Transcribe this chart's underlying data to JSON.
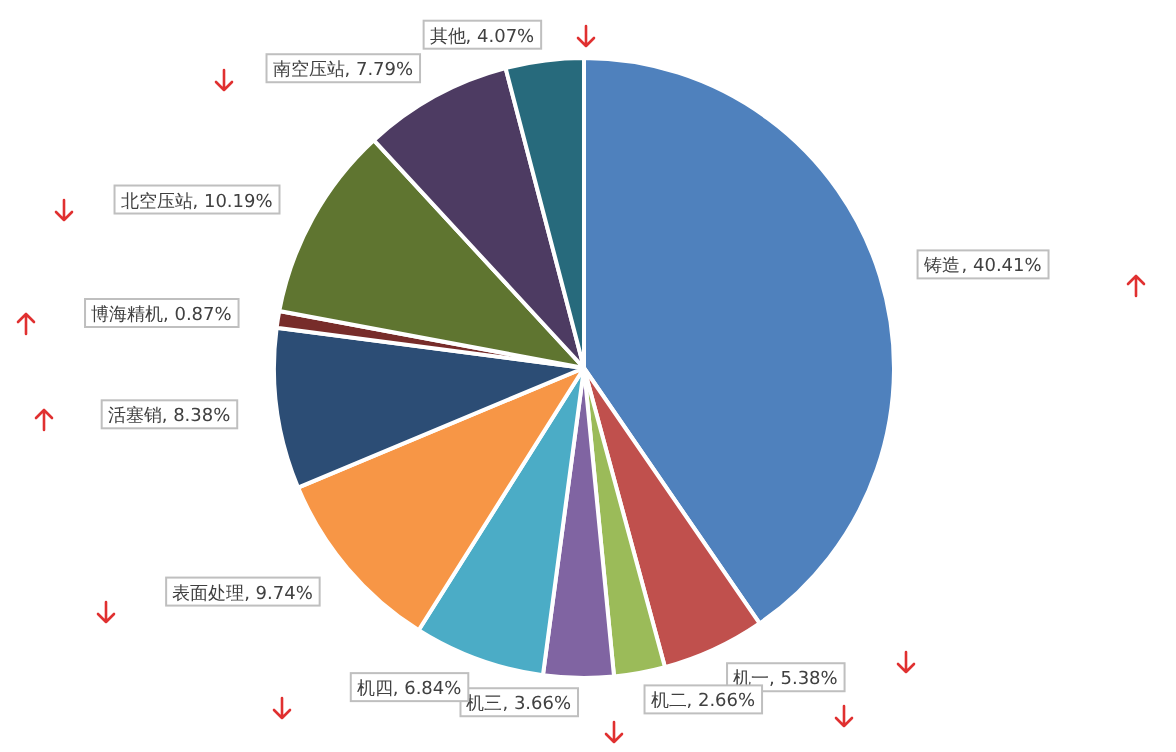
{
  "chart_data": {
    "type": "pie",
    "categories": [
      "铸造",
      "机一",
      "机二",
      "机三",
      "机四",
      "表面处理",
      "活塞销",
      "博海精机",
      "北空压站",
      "南空压站",
      "其他"
    ],
    "values": [
      40.41,
      5.38,
      2.66,
      3.66,
      6.84,
      9.74,
      8.38,
      0.87,
      10.19,
      7.79,
      4.07
    ],
    "value_labels": [
      ", 40.41%",
      ", 5.38%",
      ", 2.66%",
      ", 3.66%",
      ", 6.84%",
      ", 9.74%",
      ", 8.38%",
      ", 0.87%",
      ", 10.19%",
      ", 7.79%",
      ", 4.07%"
    ],
    "colors": [
      "#4f81bd",
      "#c0504d",
      "#9bbb59",
      "#8064a2",
      "#4bacc6",
      "#f79646",
      "#2c4d75",
      "#772c2a",
      "#5f7530",
      "#4d3b62",
      "#276a7c"
    ],
    "legend": false
  }
}
